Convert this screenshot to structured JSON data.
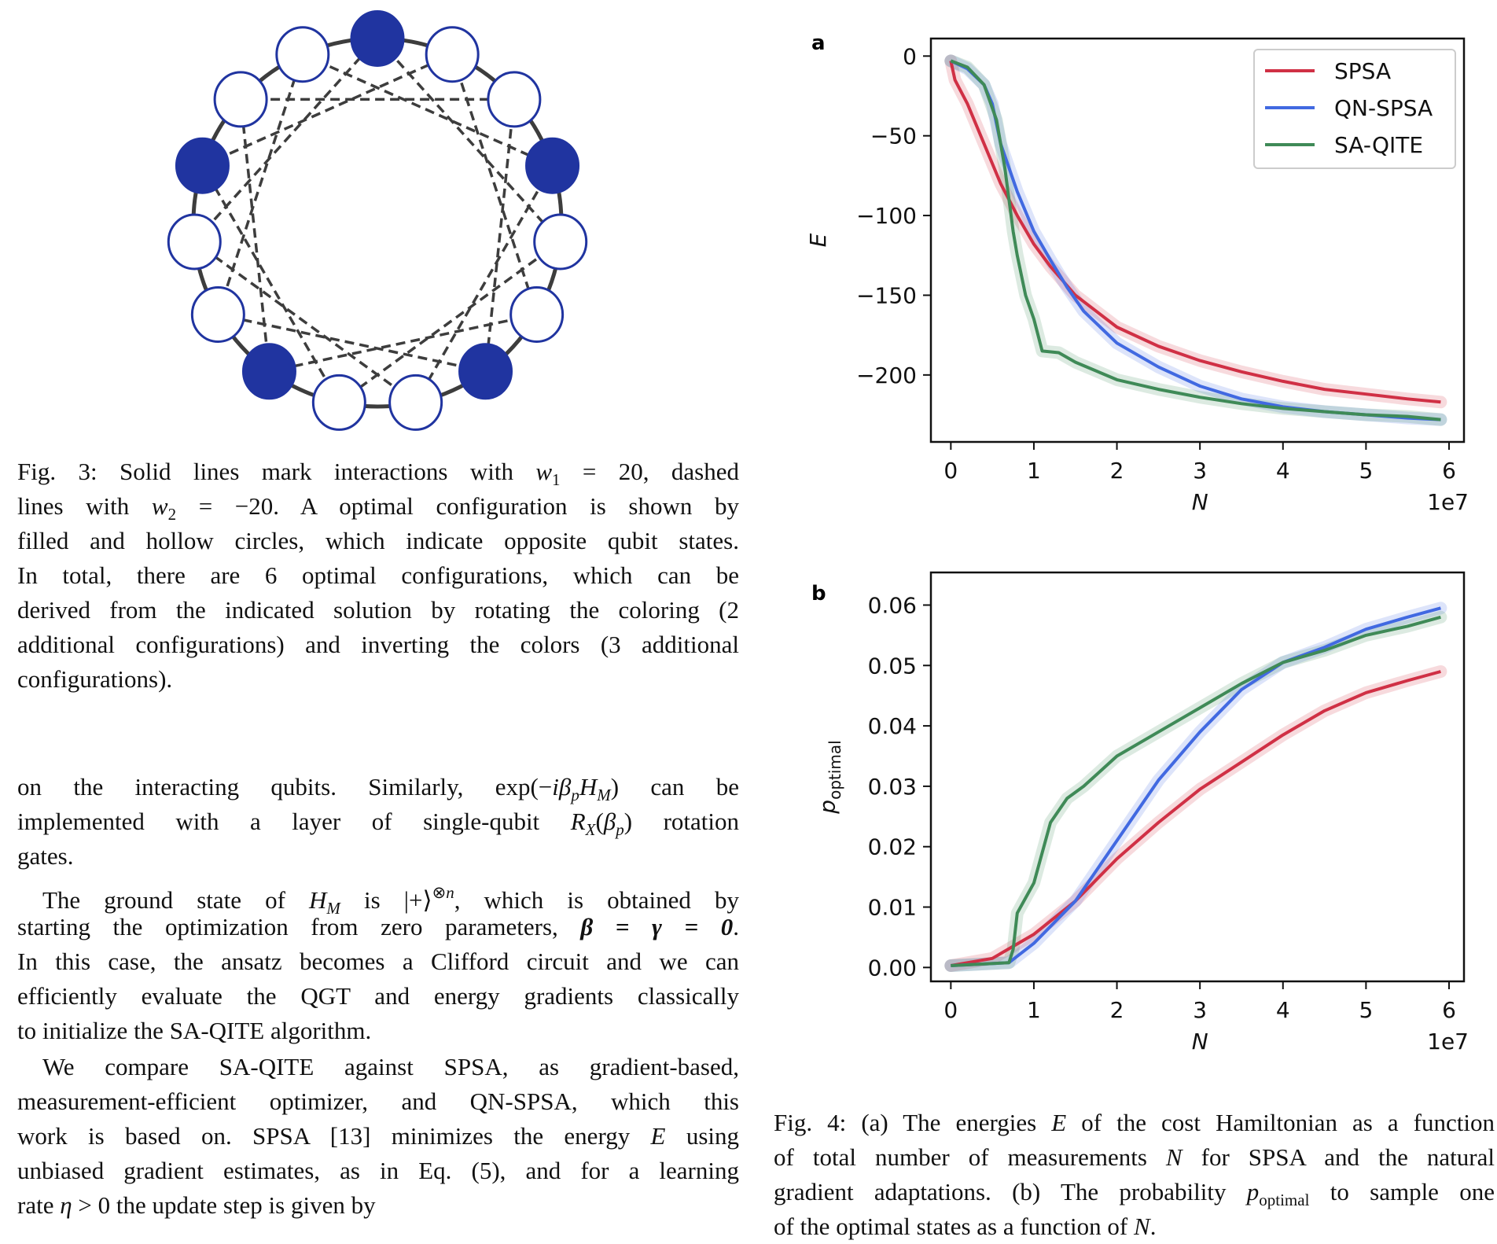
{
  "figure3": {
    "node_filled": [
      true,
      false,
      false,
      true,
      false,
      false,
      true,
      false,
      false,
      true,
      false,
      false,
      true,
      false,
      false
    ],
    "node_color": "#2034a0",
    "edge_color": "#3d3d3d",
    "caption_lines": [
      [
        [
          "Fig. 3: Solid lines mark interactions with ",
          ""
        ],
        [
          "w",
          "i"
        ],
        [
          "1",
          "sub"
        ],
        [
          " = 20, dashed",
          ""
        ]
      ],
      [
        [
          "lines with ",
          ""
        ],
        [
          "w",
          "i"
        ],
        [
          "2",
          "sub"
        ],
        [
          " = −20. A optimal configuration is shown by",
          ""
        ]
      ],
      [
        [
          "filled and hollow circles, which indicate opposite qubit states.",
          ""
        ]
      ],
      [
        [
          "In total, there are 6 optimal configurations, which can be",
          ""
        ]
      ],
      [
        [
          "derived from the indicated solution by rotating the coloring (2",
          ""
        ]
      ],
      [
        [
          "additional configurations) and inverting the colors (3 additional",
          ""
        ]
      ],
      [
        [
          "configurations).",
          ""
        ]
      ]
    ]
  },
  "body_lines": [
    [
      [
        "on the interacting qubits. Similarly, exp(−",
        ""
      ],
      [
        "iβ",
        "i"
      ],
      [
        "p",
        "isub"
      ],
      [
        "H",
        "i"
      ],
      [
        "M",
        "isub"
      ],
      [
        ") can be",
        ""
      ]
    ],
    [
      [
        "implemented with a layer of single-qubit ",
        ""
      ],
      [
        "R",
        "i"
      ],
      [
        "X",
        "isub"
      ],
      [
        "(",
        ""
      ],
      [
        "β",
        "i"
      ],
      [
        "p",
        "isub"
      ],
      [
        ") rotation",
        ""
      ]
    ],
    [
      [
        "gates.",
        ""
      ]
    ],
    [
      [
        "The ground state of ",
        ""
      ],
      [
        "H",
        "i"
      ],
      [
        "M",
        "isub"
      ],
      [
        " is |+⟩",
        ""
      ],
      [
        "⊗",
        "sup"
      ],
      [
        "n",
        "isup"
      ],
      [
        ", which is obtained by",
        ""
      ]
    ],
    [
      [
        "starting the optimization from zero parameters, ",
        ""
      ],
      [
        "β = γ = 0",
        "b"
      ],
      [
        ".",
        ""
      ]
    ],
    [
      [
        "In this case, the ansatz becomes a Clifford circuit and we can",
        ""
      ]
    ],
    [
      [
        "efficiently evaluate the QGT and energy gradients classically",
        ""
      ]
    ],
    [
      [
        "to initialize the SA-QITE algorithm.",
        ""
      ]
    ],
    [
      [
        "We compare SA-QITE against SPSA, as gradient-based,",
        ""
      ]
    ],
    [
      [
        "measurement-efficient optimizer, and QN-SPSA, which this",
        ""
      ]
    ],
    [
      [
        "work is based on. SPSA [13] minimizes the energy ",
        ""
      ],
      [
        "E",
        "i"
      ],
      [
        " using",
        ""
      ]
    ],
    [
      [
        "unbiased gradient estimates, as in Eq. (5), and for a learning",
        ""
      ]
    ],
    [
      [
        "rate ",
        ""
      ],
      [
        "η",
        "i"
      ],
      [
        " > 0 the update step is given by",
        ""
      ]
    ]
  ],
  "figure4": {
    "caption_lines": [
      [
        [
          "Fig. 4: (a) The energies ",
          ""
        ],
        [
          "E",
          "i"
        ],
        [
          " of the cost Hamiltonian as a function",
          ""
        ]
      ],
      [
        [
          "of total number of measurements ",
          ""
        ],
        [
          "N",
          "i"
        ],
        [
          " for SPSA and the natural",
          ""
        ]
      ],
      [
        [
          "gradient adaptations. (b) The probability ",
          ""
        ],
        [
          "p",
          "i"
        ],
        [
          "optimal",
          "sub"
        ],
        [
          " to sample one",
          ""
        ]
      ],
      [
        [
          "of the optimal states as a function of ",
          ""
        ],
        [
          "N",
          "i"
        ],
        [
          ".",
          ""
        ]
      ]
    ]
  },
  "chart_data": [
    {
      "panel": "a",
      "type": "line",
      "xlabel": "N",
      "ylabel": "E",
      "x_offset_text": "1e7",
      "xlim": [
        -0.24,
        6.18
      ],
      "ylim": [
        -242,
        11
      ],
      "xticks": [
        0,
        1,
        2,
        3,
        4,
        5,
        6
      ],
      "xtick_labels": [
        "0",
        "1",
        "2",
        "3",
        "4",
        "5",
        "6"
      ],
      "yticks": [
        0,
        -50,
        -100,
        -150,
        -200
      ],
      "ytick_labels": [
        "0",
        "−50",
        "−100",
        "−150",
        "−200"
      ],
      "grid": false,
      "legend": "top-right",
      "series": [
        {
          "name": "SPSA",
          "color": "#d03045",
          "x": [
            0,
            0.05,
            0.2,
            0.4,
            0.6,
            0.8,
            1.0,
            1.2,
            1.5,
            2.0,
            2.5,
            3.0,
            3.5,
            4.0,
            4.5,
            5.0,
            5.5,
            5.9
          ],
          "y": [
            -3,
            -15,
            -30,
            -55,
            -80,
            -100,
            -118,
            -132,
            -150,
            -170,
            -182,
            -191,
            -198,
            -204,
            -209,
            -212,
            -215,
            -217
          ]
        },
        {
          "name": "QN-SPSA",
          "color": "#4169e1",
          "x": [
            0,
            0.2,
            0.4,
            0.5,
            0.6,
            0.8,
            1.0,
            1.2,
            1.4,
            1.6,
            1.8,
            2.0,
            2.5,
            3.0,
            3.5,
            4.0,
            4.5,
            5.0,
            5.5,
            5.9
          ],
          "y": [
            -3,
            -8,
            -18,
            -30,
            -55,
            -85,
            -110,
            -128,
            -145,
            -160,
            -170,
            -180,
            -195,
            -207,
            -215,
            -220,
            -223,
            -225,
            -227,
            -228
          ]
        },
        {
          "name": "SA-QITE",
          "color": "#3f8a57",
          "x": [
            0,
            0.2,
            0.4,
            0.55,
            0.65,
            0.75,
            0.8,
            0.9,
            1.0,
            1.1,
            1.3,
            1.5,
            2.0,
            2.5,
            3.0,
            3.5,
            4.0,
            4.5,
            5.0,
            5.5,
            5.9
          ],
          "y": [
            -3,
            -7,
            -18,
            -40,
            -70,
            -110,
            -125,
            -150,
            -165,
            -185,
            -186,
            -192,
            -203,
            -209,
            -214,
            -218,
            -221,
            -223,
            -225,
            -226,
            -228
          ]
        }
      ]
    },
    {
      "panel": "b",
      "type": "line",
      "xlabel": "N",
      "ylabel": "p",
      "ylabel_sub": "optimal",
      "x_offset_text": "1e7",
      "xlim": [
        -0.24,
        6.18
      ],
      "ylim": [
        -0.0023,
        0.0654
      ],
      "xticks": [
        0,
        1,
        2,
        3,
        4,
        5,
        6
      ],
      "xtick_labels": [
        "0",
        "1",
        "2",
        "3",
        "4",
        "5",
        "6"
      ],
      "yticks": [
        0,
        0.01,
        0.02,
        0.03,
        0.04,
        0.05,
        0.06
      ],
      "ytick_labels": [
        "0.00",
        "0.01",
        "0.02",
        "0.03",
        "0.04",
        "0.05",
        "0.06"
      ],
      "grid": false,
      "series": [
        {
          "color": "#d03045",
          "x": [
            0,
            0.5,
            1.0,
            1.5,
            2.0,
            2.5,
            3.0,
            3.5,
            4.0,
            4.5,
            5.0,
            5.5,
            5.9
          ],
          "y": [
            0.0003,
            0.0015,
            0.0055,
            0.011,
            0.018,
            0.024,
            0.0295,
            0.034,
            0.0385,
            0.0425,
            0.0455,
            0.0475,
            0.049
          ]
        },
        {
          "color": "#4169e1",
          "x": [
            0,
            0.7,
            1.0,
            1.5,
            2.0,
            2.5,
            3.0,
            3.5,
            4.0,
            4.5,
            5.0,
            5.5,
            5.9
          ],
          "y": [
            0.0003,
            0.0008,
            0.004,
            0.011,
            0.021,
            0.031,
            0.039,
            0.046,
            0.0505,
            0.053,
            0.056,
            0.058,
            0.0595
          ]
        },
        {
          "color": "#3f8a57",
          "x": [
            0,
            0.7,
            0.75,
            0.8,
            1.0,
            1.2,
            1.4,
            1.6,
            2.0,
            2.5,
            3.0,
            3.5,
            4.0,
            4.5,
            5.0,
            5.5,
            5.9
          ],
          "y": [
            0.0003,
            0.0008,
            0.003,
            0.009,
            0.014,
            0.024,
            0.028,
            0.03,
            0.035,
            0.039,
            0.043,
            0.047,
            0.0505,
            0.0525,
            0.055,
            0.0565,
            0.058
          ]
        }
      ]
    }
  ]
}
